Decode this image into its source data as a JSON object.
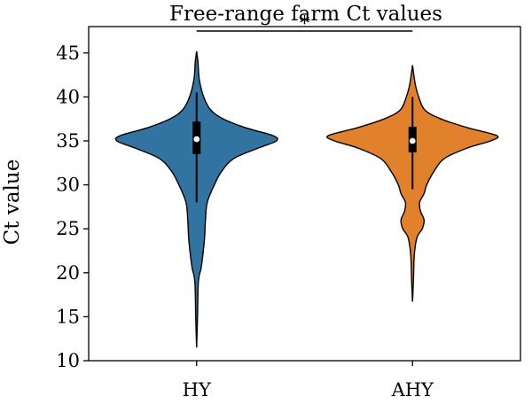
{
  "chart_data": {
    "type": "violin",
    "title": "Free-range farm Ct values",
    "xlabel": "",
    "ylabel": "Ct value",
    "ylim": [
      10,
      48
    ],
    "yticks": [
      10,
      15,
      20,
      25,
      30,
      35,
      40,
      45
    ],
    "categories": [
      "HY",
      "AHY"
    ],
    "series": [
      {
        "category": "HY",
        "color": "#3274a1",
        "min": 11.5,
        "max": 45.2,
        "q1": 33.5,
        "median": 35.2,
        "q3": 37.2,
        "whisker_low": 28.0,
        "whisker_high": 40.5,
        "density": [
          [
            11.5,
            0.0
          ],
          [
            15.0,
            0.01
          ],
          [
            19.0,
            0.02
          ],
          [
            20.5,
            0.05
          ],
          [
            22.0,
            0.07
          ],
          [
            24.0,
            0.09
          ],
          [
            26.0,
            0.1
          ],
          [
            28.0,
            0.12
          ],
          [
            30.0,
            0.2
          ],
          [
            31.5,
            0.28
          ],
          [
            33.0,
            0.42
          ],
          [
            34.2,
            0.7
          ],
          [
            35.0,
            0.9
          ],
          [
            35.6,
            0.86
          ],
          [
            36.5,
            0.55
          ],
          [
            37.5,
            0.3
          ],
          [
            38.5,
            0.16
          ],
          [
            40.0,
            0.08
          ],
          [
            42.0,
            0.03
          ],
          [
            44.0,
            0.015
          ],
          [
            45.2,
            0.0
          ]
        ]
      },
      {
        "category": "AHY",
        "color": "#e1812c",
        "min": 16.7,
        "max": 43.6,
        "q1": 33.7,
        "median": 35.0,
        "q3": 36.6,
        "whisker_low": 29.5,
        "whisker_high": 40.0,
        "density": [
          [
            16.7,
            0.0
          ],
          [
            19.0,
            0.01
          ],
          [
            22.0,
            0.02
          ],
          [
            24.0,
            0.05
          ],
          [
            25.0,
            0.11
          ],
          [
            26.0,
            0.13
          ],
          [
            27.0,
            0.09
          ],
          [
            28.0,
            0.08
          ],
          [
            29.0,
            0.13
          ],
          [
            30.0,
            0.16
          ],
          [
            31.5,
            0.24
          ],
          [
            33.0,
            0.36
          ],
          [
            34.2,
            0.62
          ],
          [
            35.0,
            0.88
          ],
          [
            35.6,
            0.95
          ],
          [
            36.5,
            0.62
          ],
          [
            37.5,
            0.32
          ],
          [
            38.5,
            0.14
          ],
          [
            40.0,
            0.07
          ],
          [
            41.5,
            0.03
          ],
          [
            43.6,
            0.0
          ]
        ]
      }
    ],
    "significance": {
      "between": [
        "HY",
        "AHY"
      ],
      "label": "*",
      "y": 47.5
    }
  }
}
